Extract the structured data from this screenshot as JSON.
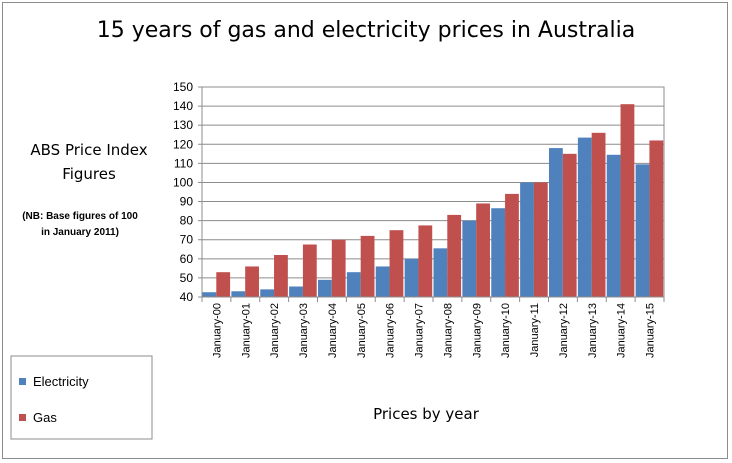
{
  "chart_data": {
    "type": "bar",
    "title": "15 years of gas and electricity prices in Australia",
    "ylabel_lines": [
      "ABS Price Index",
      "Figures"
    ],
    "note_lines": [
      "(NB: Base figures of 100",
      "in January 2011)"
    ],
    "xlabel": "Prices by year",
    "ylim": [
      40,
      150
    ],
    "ytick_step": 10,
    "grid": true,
    "legend_position": "bottom-left",
    "categories": [
      "January-00",
      "January-01",
      "January-02",
      "January-03",
      "January-04",
      "January-05",
      "January-06",
      "January-07",
      "January-08",
      "January-09",
      "January-10",
      "January-11",
      "January-12",
      "January-13",
      "January-14",
      "January-15"
    ],
    "series": [
      {
        "name": "Electricity",
        "color": "#4f81bd",
        "values": [
          42.5,
          43,
          44,
          45.5,
          49,
          53,
          56,
          60,
          65.5,
          80,
          86.5,
          100,
          118,
          123.5,
          114.5,
          109.5
        ]
      },
      {
        "name": "Gas",
        "color": "#c0504d",
        "values": [
          53,
          56,
          62,
          67.5,
          70,
          72,
          75,
          77.5,
          83,
          89,
          94,
          100,
          115,
          126,
          141,
          122
        ]
      }
    ]
  }
}
